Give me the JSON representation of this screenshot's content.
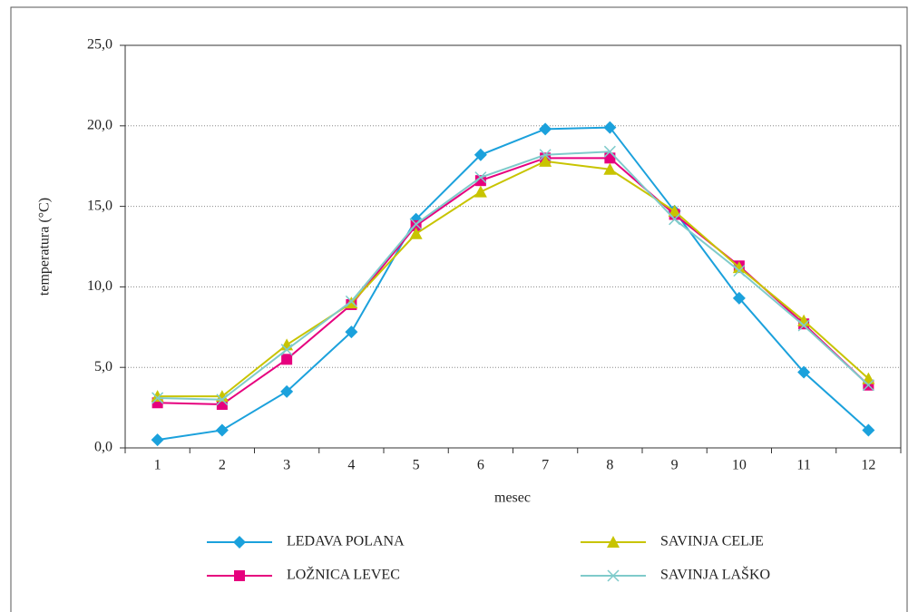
{
  "chart_data": {
    "type": "line",
    "x_label": "mesec",
    "y_label": "temperatura (°C)",
    "categories": [
      "1",
      "2",
      "3",
      "4",
      "5",
      "6",
      "7",
      "8",
      "9",
      "10",
      "11",
      "12"
    ],
    "ylim": [
      0,
      25
    ],
    "yticks": [
      {
        "value": 0,
        "label": "0,0"
      },
      {
        "value": 5,
        "label": "5,0"
      },
      {
        "value": 10,
        "label": "10,0"
      },
      {
        "value": 15,
        "label": "15,0"
      },
      {
        "value": 20,
        "label": "20,0"
      },
      {
        "value": 25,
        "label": "25,0"
      }
    ],
    "grid": true,
    "series": [
      {
        "name": "LEDAVA POLANA",
        "color": "#1ba1dc",
        "marker": "diamond",
        "values": [
          0.5,
          1.1,
          3.5,
          7.2,
          14.2,
          18.2,
          19.8,
          19.9,
          14.7,
          9.3,
          4.7,
          1.1
        ]
      },
      {
        "name": "LOŽNICA LEVEC",
        "color": "#e6007e",
        "marker": "square",
        "values": [
          2.8,
          2.7,
          5.5,
          8.9,
          13.8,
          16.6,
          18.0,
          18.0,
          14.5,
          11.3,
          7.7,
          3.9
        ]
      },
      {
        "name": "SAVINJA CELJE",
        "color": "#c8c400",
        "marker": "triangle",
        "values": [
          3.2,
          3.2,
          6.4,
          9.0,
          13.3,
          15.9,
          17.8,
          17.3,
          14.7,
          11.2,
          7.9,
          4.3
        ]
      },
      {
        "name": "SAVINJA LAŠKO",
        "color": "#7fcbcb",
        "marker": "x",
        "values": [
          3.1,
          3.0,
          6.1,
          9.1,
          13.9,
          16.8,
          18.2,
          18.4,
          14.2,
          11.0,
          7.6,
          3.9
        ]
      }
    ]
  }
}
